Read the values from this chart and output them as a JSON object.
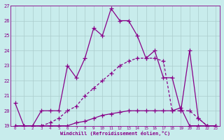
{
  "xlabel": "Windchill (Refroidissement éolien,°C)",
  "background_color": "#c8ecec",
  "line_color": "#880088",
  "grid_color": "#aacccc",
  "x_values": [
    0,
    1,
    2,
    3,
    4,
    5,
    6,
    7,
    8,
    9,
    10,
    11,
    12,
    13,
    14,
    15,
    16,
    17,
    18,
    19,
    20,
    21,
    22,
    23
  ],
  "line1": [
    20.5,
    19.0,
    19.0,
    20.0,
    20.0,
    20.0,
    23.0,
    22.2,
    23.5,
    25.5,
    25.0,
    26.8,
    26.0,
    26.0,
    25.0,
    23.5,
    24.0,
    22.2,
    22.2,
    20.0,
    24.0,
    19.5,
    19.0,
    19.0
  ],
  "line2": [
    19.0,
    19.0,
    19.0,
    19.0,
    19.2,
    19.5,
    20.0,
    20.3,
    21.0,
    21.5,
    22.0,
    22.5,
    23.0,
    23.3,
    23.5,
    23.5,
    23.5,
    23.3,
    20.0,
    20.0,
    20.0,
    19.5,
    19.0,
    19.0
  ],
  "line3": [
    19.0,
    19.0,
    19.0,
    19.0,
    19.0,
    19.0,
    19.0,
    19.2,
    19.3,
    19.5,
    19.7,
    19.8,
    19.9,
    20.0,
    20.0,
    20.0,
    20.0,
    20.0,
    20.0,
    20.2,
    19.0,
    19.0,
    19.0,
    19.0
  ],
  "ylim": [
    19,
    27
  ],
  "xlim": [
    -0.5,
    23.5
  ],
  "yticks": [
    19,
    20,
    21,
    22,
    23,
    24,
    25,
    26,
    27
  ],
  "xticks": [
    0,
    1,
    2,
    3,
    4,
    5,
    6,
    7,
    8,
    9,
    10,
    11,
    12,
    13,
    14,
    15,
    16,
    17,
    18,
    19,
    20,
    21,
    22,
    23
  ],
  "figsize": [
    3.2,
    2.0
  ],
  "dpi": 100
}
